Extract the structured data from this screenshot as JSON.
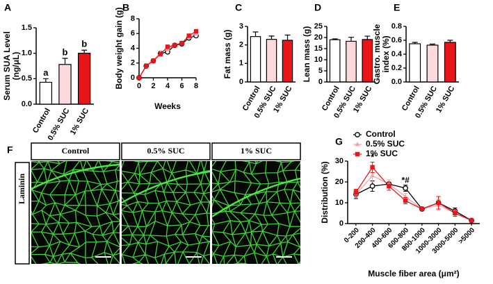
{
  "chart_data": [
    {
      "type": "bar",
      "panel": "A",
      "ylabel": [
        "Serum SUA Level",
        "(ng/μL)"
      ],
      "categories": [
        "Control",
        "0.5% SUC",
        "1% SUC"
      ],
      "values": [
        0.43,
        0.78,
        1.0
      ],
      "errors": [
        0.07,
        0.12,
        0.06
      ],
      "colors": [
        "#ffffff",
        "#fbd9dc",
        "#e8161b"
      ],
      "annotations": [
        "a",
        "b",
        "b"
      ],
      "ylim": [
        0,
        1.5
      ],
      "yticks": [
        {
          "value": 0,
          "label": "0.0"
        },
        {
          "value": 0.5,
          "label": "0.5"
        },
        {
          "value": 1,
          "label": "1.0"
        },
        {
          "value": 1.5,
          "label": "1.5"
        }
      ]
    },
    {
      "type": "line",
      "panel": "B",
      "ylabel": [
        "Body weight gain (g)"
      ],
      "xlabel": "Weeks",
      "x": [
        0,
        1,
        2,
        3,
        4,
        5,
        6,
        7,
        8
      ],
      "series": [
        {
          "name": "Control",
          "color": "#000000",
          "marker": "circle",
          "values": [
            0,
            1.6,
            2.3,
            3.3,
            3.5,
            4.4,
            4.6,
            5.4,
            5.7
          ]
        },
        {
          "name": "0.5% SUC",
          "color": "#f4a3ab",
          "marker": "triangle",
          "values": [
            0,
            1.7,
            2.4,
            3.4,
            3.9,
            4.4,
            4.8,
            5.5,
            6.0
          ]
        },
        {
          "name": "1% SUC",
          "color": "#e8161b",
          "marker": "square",
          "values": [
            0,
            1.6,
            2.3,
            3.2,
            4.2,
            4.4,
            4.7,
            5.7,
            6.3
          ]
        }
      ],
      "xlim": [
        0,
        8
      ],
      "xticks": [
        0,
        2,
        4,
        6,
        8
      ],
      "ylim": [
        0,
        8
      ],
      "yticks": [
        0,
        2,
        4,
        6,
        8
      ]
    },
    {
      "type": "bar",
      "panel": "C",
      "ylabel": [
        "Fat mass (g)"
      ],
      "categories": [
        "Control",
        "0.5% SUC",
        "1% SUC"
      ],
      "values": [
        2.45,
        2.3,
        2.25
      ],
      "errors": [
        0.25,
        0.18,
        0.28
      ],
      "colors": [
        "#ffffff",
        "#fbd9dc",
        "#e8161b"
      ],
      "ylim": [
        0,
        3
      ],
      "yticks": [
        0,
        1,
        2,
        3
      ]
    },
    {
      "type": "bar",
      "panel": "D",
      "ylabel": [
        "Lean mass (g)"
      ],
      "categories": [
        "Control",
        "0.5% SUC",
        "1% SUC"
      ],
      "values": [
        19,
        18.3,
        19.1
      ],
      "errors": [
        0.4,
        1.8,
        1.5
      ],
      "colors": [
        "#ffffff",
        "#fbd9dc",
        "#e8161b"
      ],
      "ylim": [
        0,
        25
      ],
      "yticks": [
        0,
        5,
        10,
        15,
        20,
        25
      ]
    },
    {
      "type": "bar",
      "panel": "E",
      "ylabel": [
        "Gastro. muscle",
        "index (%)"
      ],
      "categories": [
        "Control",
        "0.5% SUC",
        "1% SUC"
      ],
      "values": [
        0.55,
        0.53,
        0.57
      ],
      "errors": [
        0.02,
        0.015,
        0.03
      ],
      "colors": [
        "#ffffff",
        "#fbd9dc",
        "#e8161b"
      ],
      "ylim": [
        0,
        0.8
      ],
      "yticks": [
        {
          "value": 0,
          "label": "0.0"
        },
        {
          "value": 0.2,
          "label": "0.2"
        },
        {
          "value": 0.4,
          "label": "0.4"
        },
        {
          "value": 0.6,
          "label": "0.6"
        },
        {
          "value": 0.8,
          "label": "0.8"
        }
      ]
    },
    {
      "type": "line",
      "panel": "G",
      "ylabel": [
        "Distribution (%)"
      ],
      "xlabel": "Muscle fiber area (μm²)",
      "categories": [
        "0-200",
        "200-400",
        "400-600",
        "600-800",
        "800-1000",
        "1000-3000",
        "3000-5000",
        ">5000"
      ],
      "series": [
        {
          "name": "Control",
          "color": "#000000",
          "marker": "circle",
          "values": [
            14,
            18,
            19,
            17,
            7,
            10,
            6,
            1.5
          ],
          "errors": [
            2,
            2.5,
            2,
            1.5,
            0.8,
            3,
            1.5,
            0.4
          ]
        },
        {
          "name": "0.5% SUC",
          "color": "#f4a3ab",
          "marker": "triangle",
          "values": [
            14,
            23,
            19,
            13,
            7,
            9,
            5,
            1.5
          ],
          "errors": [
            1.5,
            3,
            2,
            1.5,
            0.8,
            2.5,
            1.5,
            0.4
          ]
        },
        {
          "name": "1% SUC",
          "color": "#e8161b",
          "marker": "square",
          "values": [
            15,
            27,
            18,
            11,
            7,
            10,
            5,
            1.5
          ],
          "errors": [
            1.5,
            2.5,
            2,
            1.5,
            0.8,
            3,
            1.5,
            0.4
          ]
        }
      ],
      "annotations": [
        null,
        "*",
        null,
        "*#",
        null,
        null,
        null,
        null
      ],
      "legend": "upper left",
      "ylim": [
        0,
        30
      ],
      "yticks": [
        0,
        10,
        20,
        30
      ]
    }
  ],
  "image_panel": {
    "panel": "F",
    "columns": [
      "Control",
      "0.5% SUC",
      "1% SUC"
    ],
    "row_label": "Laminin"
  }
}
